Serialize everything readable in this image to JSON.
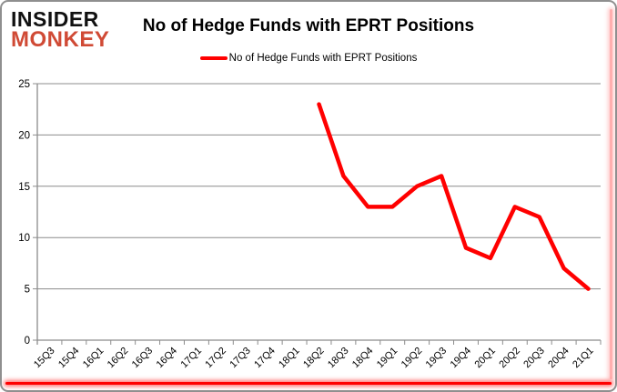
{
  "logo": {
    "line1": "INSIDER",
    "line2": "MONKEY",
    "line1_color": "#111111",
    "line2_color": "#d04a35"
  },
  "title": "No of Hedge Funds with EPRT Positions",
  "legend": {
    "label": "No of Hedge Funds with EPRT Positions",
    "color": "#ff0000"
  },
  "chart_data": {
    "type": "line",
    "title": "No of Hedge Funds with EPRT Positions",
    "categories": [
      "15Q3",
      "15Q4",
      "16Q1",
      "16Q2",
      "16Q3",
      "16Q4",
      "17Q1",
      "17Q2",
      "17Q3",
      "17Q4",
      "18Q1",
      "18Q2",
      "18Q3",
      "18Q4",
      "19Q1",
      "19Q2",
      "19Q3",
      "19Q4",
      "20Q1",
      "20Q2",
      "20Q3",
      "20Q4",
      "21Q1"
    ],
    "series": [
      {
        "name": "No of Hedge Funds with EPRT Positions",
        "color": "#ff0000",
        "values": [
          null,
          null,
          null,
          null,
          null,
          null,
          null,
          null,
          null,
          null,
          null,
          23,
          16,
          13,
          13,
          15,
          16,
          9,
          8,
          13,
          12,
          7,
          5
        ]
      }
    ],
    "xlabel": "",
    "ylabel": "",
    "ylim": [
      0,
      25
    ],
    "ytick_step": 5,
    "grid": true,
    "legend_position": "top",
    "gridline_color": "#8c8c8c",
    "axis_text_color": "#000000"
  },
  "colors": {
    "card_border": "#8f8f8f",
    "bottom_bar": "#ff0000",
    "right_glow": "#ff6e6e"
  }
}
